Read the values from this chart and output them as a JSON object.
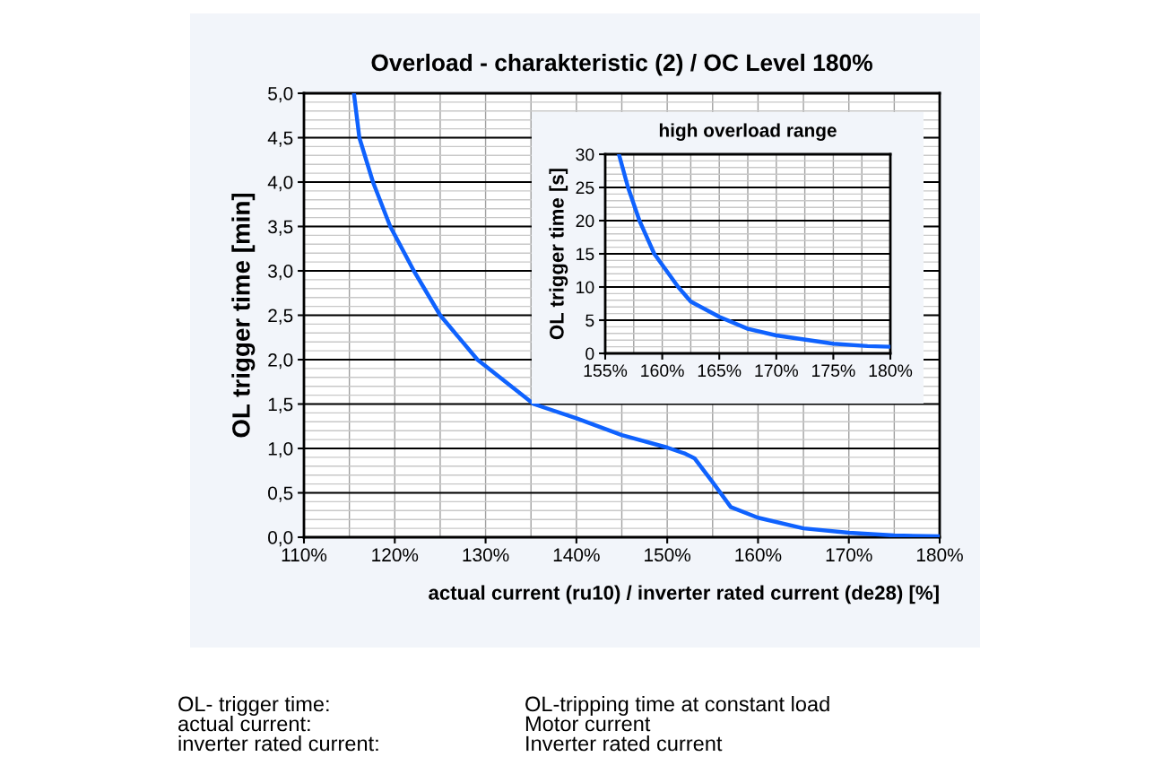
{
  "chart_data": [
    {
      "type": "line",
      "title": "Overload - charakteristic (2) / OC Level 180%",
      "xlabel": "actual current (ru10) / inverter rated current (de28) [%]",
      "ylabel": "OL trigger time [min]",
      "series": [
        {
          "color": "#0f62fe",
          "x": [
            115.5,
            116.1,
            117.6,
            119.5,
            122.1,
            125.0,
            129.1,
            135.3,
            140,
            145,
            150,
            152,
            153,
            155,
            157,
            160,
            165,
            170,
            175,
            180
          ],
          "values": [
            5.0,
            4.5,
            4.0,
            3.5,
            3.0,
            2.5,
            2.0,
            1.5,
            1.34,
            1.15,
            1.01,
            0.94,
            0.89,
            0.62,
            0.34,
            0.22,
            0.1,
            0.05,
            0.02,
            0.01
          ]
        }
      ],
      "xlim": [
        110,
        180
      ],
      "xticks": [
        {
          "value": 110,
          "label": "110%"
        },
        {
          "value": 120,
          "label": "120%"
        },
        {
          "value": 130,
          "label": "130%"
        },
        {
          "value": 140,
          "label": "140%"
        },
        {
          "value": 150,
          "label": "150%"
        },
        {
          "value": 160,
          "label": "160%"
        },
        {
          "value": 170,
          "label": "170%"
        },
        {
          "value": 180,
          "label": "180%"
        }
      ],
      "ylim": [
        0,
        5
      ],
      "yticks": [
        {
          "value": 0,
          "label": "0,0"
        },
        {
          "value": 0.5,
          "label": "0,5"
        },
        {
          "value": 1,
          "label": "1,0"
        },
        {
          "value": 1.5,
          "label": "1,5"
        },
        {
          "value": 2,
          "label": "2,0"
        },
        {
          "value": 2.5,
          "label": "2,5"
        },
        {
          "value": 3,
          "label": "3,0"
        },
        {
          "value": 3.5,
          "label": "3,5"
        },
        {
          "value": 4,
          "label": "4,0"
        },
        {
          "value": 4.5,
          "label": "4,5"
        },
        {
          "value": 5,
          "label": "5,0"
        }
      ],
      "grid": true,
      "line_style": "solid",
      "annotations": [
        "OL- trigger time:",
        "OL-tripping time at constant load",
        "actual current:",
        "Motor current",
        "inverter rated current:",
        "Inverter rated current"
      ]
    },
    {
      "type": "line",
      "title": "high overload range",
      "ylabel": "OL trigger time [s]",
      "series": [
        {
          "color": "#0f62fe",
          "x": [
            156.2,
            157.0,
            158.0,
            159.3,
            161.4,
            162.5,
            165,
            167.5,
            170,
            175,
            178,
            180
          ],
          "values": [
            30,
            25,
            20,
            15,
            10,
            7.8,
            5.5,
            3.7,
            2.7,
            1.45,
            1.1,
            1.0
          ]
        }
      ],
      "xlim": [
        155,
        180
      ],
      "xticks": [
        {
          "value": 155,
          "label": "155%"
        },
        {
          "value": 160,
          "label": "160%"
        },
        {
          "value": 165,
          "label": "165%"
        },
        {
          "value": 170,
          "label": "170%"
        },
        {
          "value": 175,
          "label": "175%"
        },
        {
          "value": 180,
          "label": "180%"
        }
      ],
      "ylim": [
        0,
        30
      ],
      "yticks": [
        0,
        5,
        10,
        15,
        20,
        25,
        30
      ],
      "grid": true,
      "line_style": "solid"
    }
  ]
}
